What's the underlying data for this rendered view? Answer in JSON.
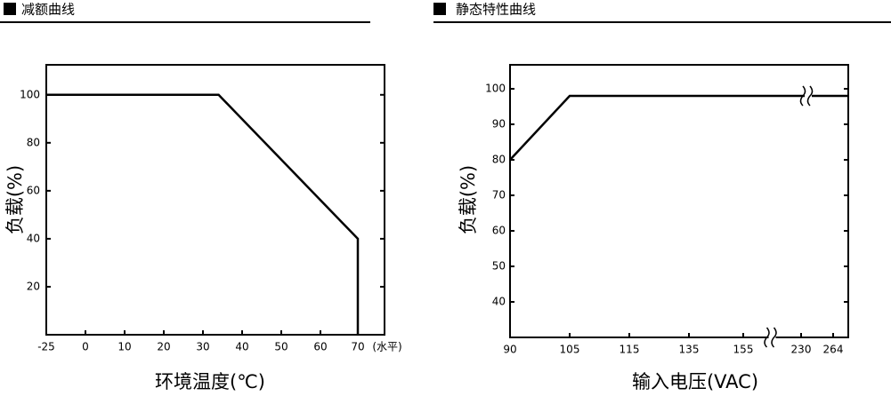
{
  "chart_data": [
    {
      "type": "line",
      "title": "减额曲线",
      "xlabel": "环境温度(℃)",
      "ylabel": "负载(%)",
      "x_unit": "(水平)",
      "x": [
        -25,
        34,
        70,
        70
      ],
      "series": [
        {
          "color": "#000000",
          "values": [
            100,
            100,
            40,
            0
          ]
        }
      ],
      "xlim": [
        -25,
        77
      ],
      "xticks": [
        -25,
        0,
        10,
        20,
        30,
        40,
        50,
        60,
        70
      ],
      "ylim": [
        0,
        112.5
      ],
      "yticks": [
        20,
        40,
        60,
        80,
        100
      ],
      "grid": false
    },
    {
      "type": "line",
      "title": "静态特性曲线",
      "xlabel": "输入电压(VAC)",
      "ylabel": "负载(%)",
      "x": [
        90,
        105,
        280
      ],
      "series": [
        {
          "color": "#000000",
          "values": [
            80,
            98,
            98
          ]
        }
      ],
      "xlim": [
        90,
        280
      ],
      "xticks": [
        90,
        105,
        115,
        135,
        155,
        230,
        264
      ],
      "axis_break": true,
      "ylim": [
        30,
        106.75
      ],
      "yticks": [
        40,
        50,
        60,
        70,
        80,
        90,
        100
      ],
      "grid": false
    }
  ]
}
